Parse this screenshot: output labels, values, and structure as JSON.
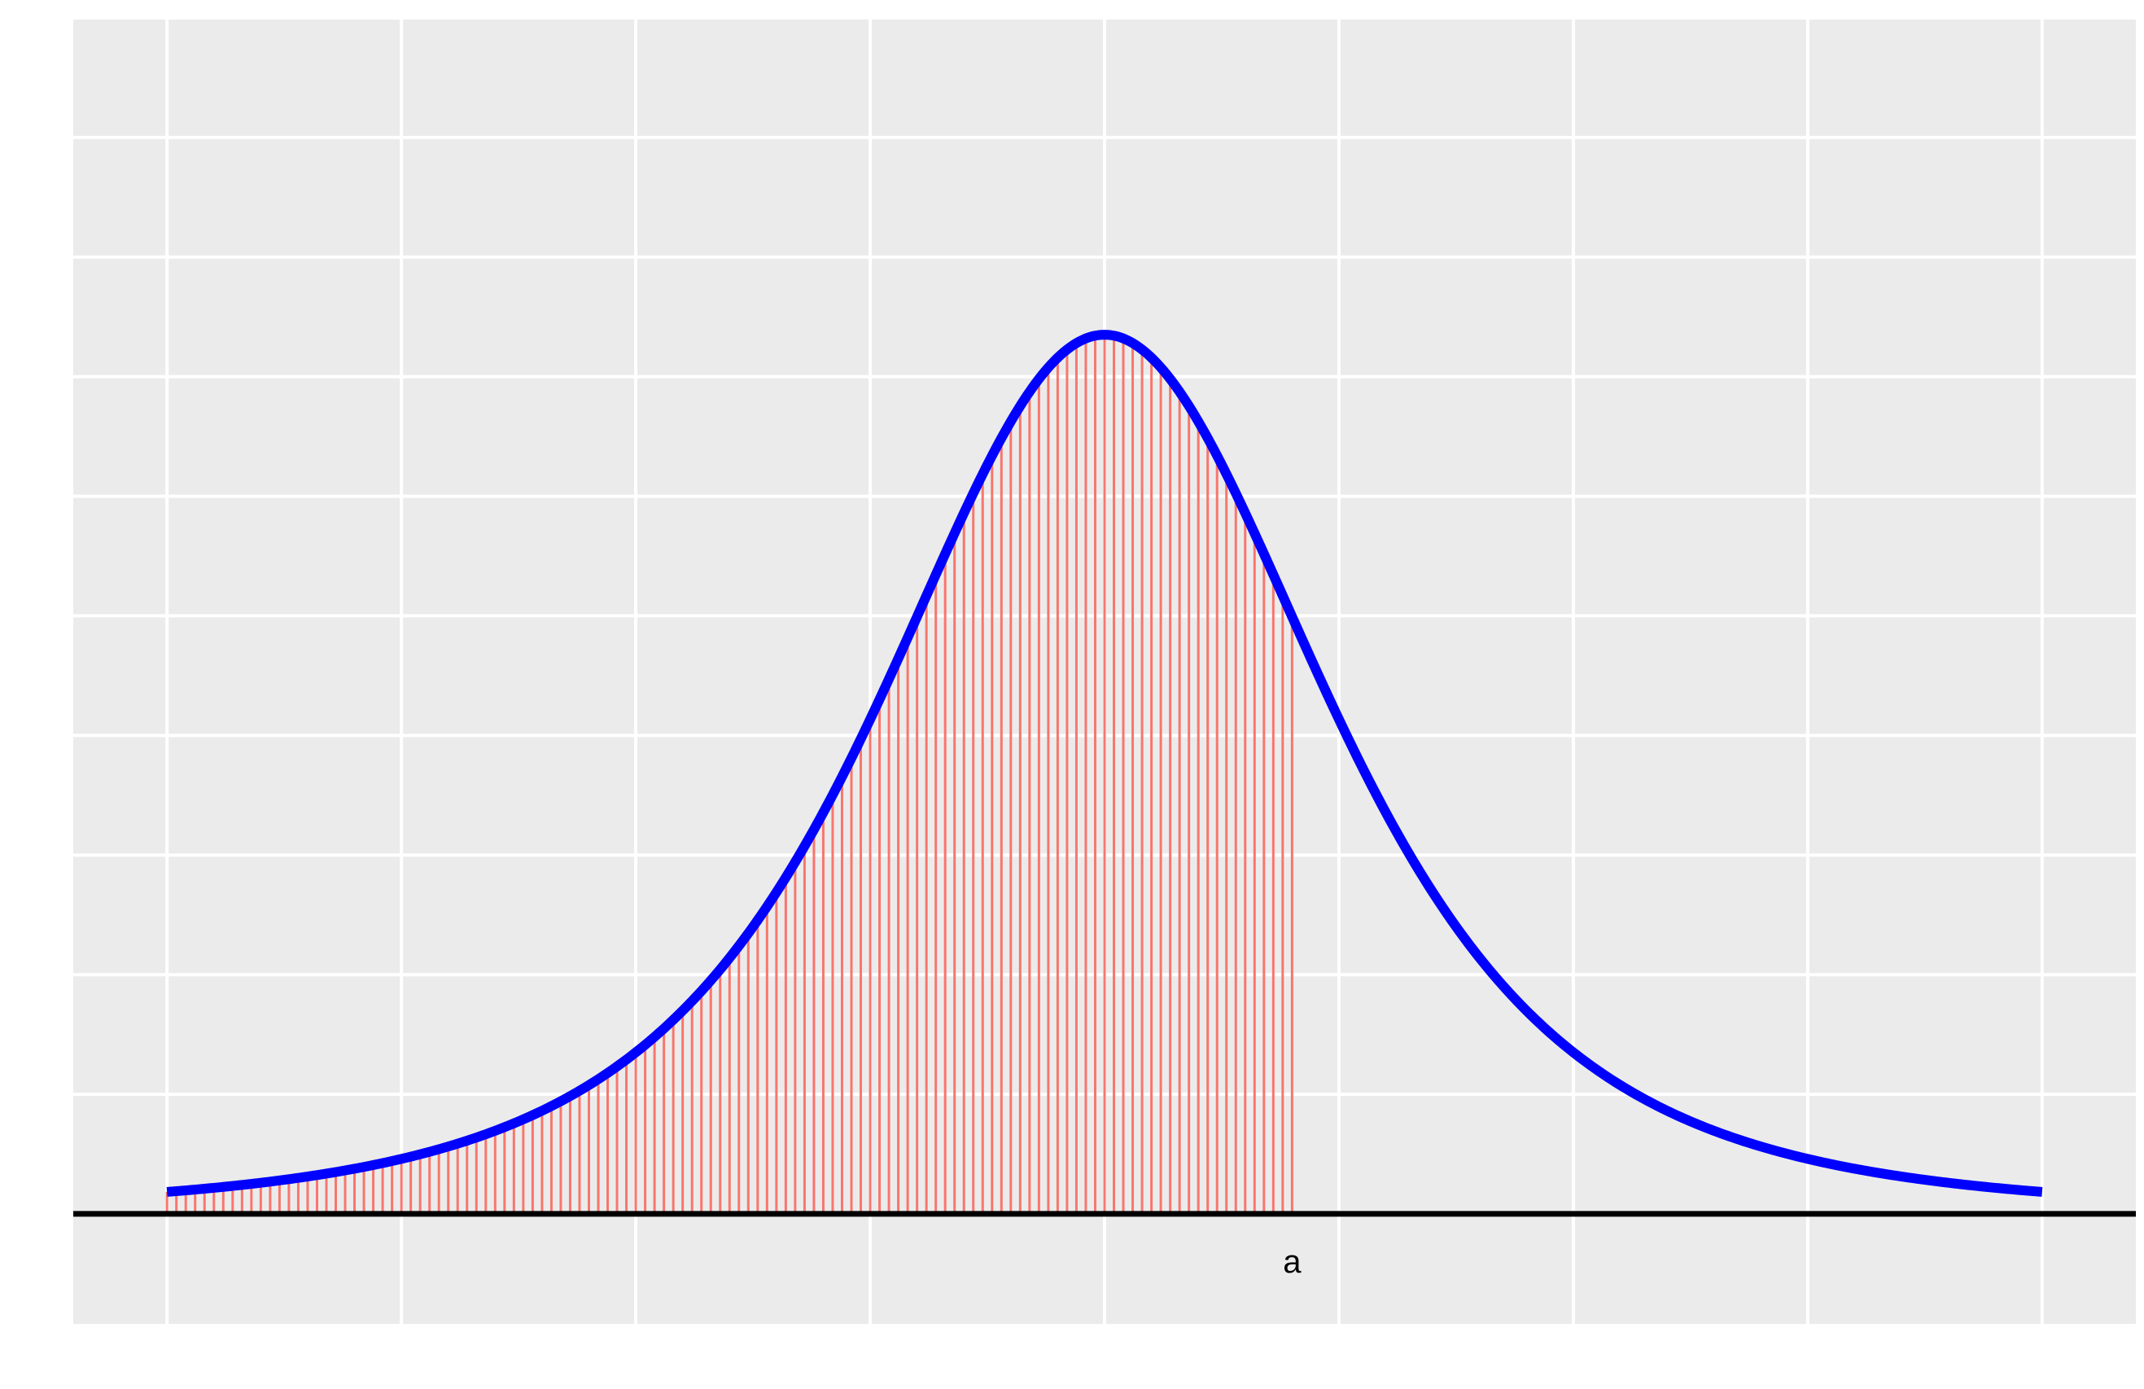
{
  "chart_data": {
    "type": "area",
    "title": "",
    "xlabel": "",
    "ylabel": "",
    "xlim": [
      -4.4,
      4.4
    ],
    "ylim": [
      -0.046,
      0.5
    ],
    "x_gridlines": [
      -4,
      -3,
      -2,
      -1,
      0,
      1,
      2,
      3,
      4
    ],
    "y_gridlines": [
      0,
      0.05,
      0.1,
      0.15,
      0.2,
      0.25,
      0.3,
      0.35,
      0.4,
      0.45,
      0.5
    ],
    "grid": true,
    "curve": {
      "distribution": "t",
      "degrees_of_freedom": 3,
      "x_range": [
        -4,
        4
      ],
      "color": "#0000ff"
    },
    "shaded_region": {
      "x_from": -4,
      "x_to": 0.8,
      "color": "#f8766d"
    },
    "baseline": {
      "y": 0,
      "color": "#000000"
    },
    "annotations": [
      {
        "text": "a",
        "x": 0.8
      }
    ],
    "colors": {
      "panel_background": "#ebebeb",
      "gridline": "#ffffff"
    }
  }
}
